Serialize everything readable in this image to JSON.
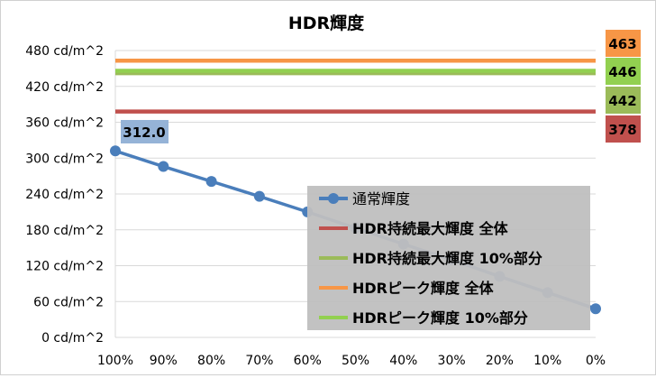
{
  "chart_data": {
    "type": "line",
    "title": "HDR輝度",
    "xlabel": "",
    "ylabel": "",
    "categories": [
      "100%",
      "90%",
      "80%",
      "70%",
      "60%",
      "50%",
      "40%",
      "30%",
      "20%",
      "10%",
      "0%"
    ],
    "ylim": [
      0,
      480
    ],
    "yticks": [
      "0 cd/m^2",
      "60 cd/m^2",
      "120 cd/m^2",
      "180 cd/m^2",
      "240 cd/m^2",
      "300 cd/m^2",
      "360 cd/m^2",
      "420 cd/m^2",
      "480 cd/m^2"
    ],
    "ytick_values": [
      0,
      60,
      120,
      180,
      240,
      300,
      360,
      420,
      480
    ],
    "grid": true,
    "legend_position": "bottom-right",
    "series": [
      {
        "name": "通常輝度",
        "kind": "line-markers",
        "color": "#4a7ebb",
        "values": [
          312.0,
          286,
          261,
          236,
          210,
          183,
          156,
          130,
          102,
          75,
          48
        ],
        "data_label": "312.0"
      },
      {
        "name": "HDR持続最大輝度 全体",
        "kind": "hline",
        "color": "#c0504d",
        "value": 378,
        "label": "378"
      },
      {
        "name": "HDR持続最大輝度 10%部分",
        "kind": "hline",
        "color": "#9bbb59",
        "value": 442,
        "label": "442"
      },
      {
        "name": "HDRピーク輝度 全体",
        "kind": "hline",
        "color": "#f79646",
        "value": 463,
        "label": "463"
      },
      {
        "name": "HDRピーク輝度 10%部分",
        "kind": "hline",
        "color": "#92d050",
        "value": 446,
        "label": "446"
      }
    ],
    "value_boxes": [
      {
        "label": "463",
        "color": "#f79646"
      },
      {
        "label": "446",
        "color": "#92d050"
      },
      {
        "label": "442",
        "color": "#9bbb59"
      },
      {
        "label": "378",
        "color": "#c0504d"
      }
    ]
  }
}
